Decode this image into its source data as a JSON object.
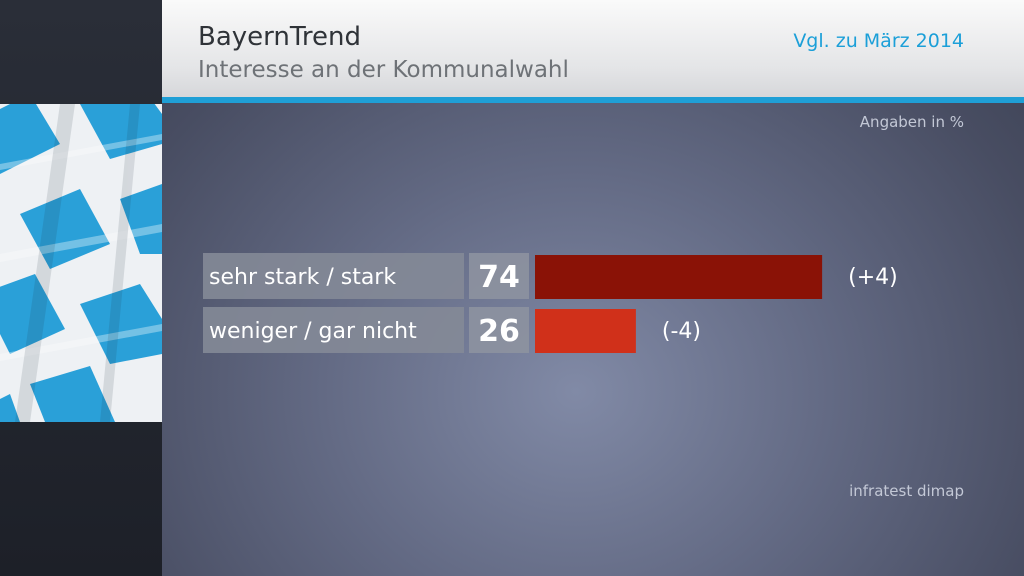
{
  "header": {
    "title": "BayernTrend",
    "subtitle": "Interesse an der Kommunalwahl",
    "comparison": "Vgl. zu März 2014"
  },
  "units_label": "Angaben in %",
  "source": "infratest dimap",
  "colors": {
    "accent": "#1f9fd6",
    "bar_first": "#8a1206",
    "bar_second": "#d0301a",
    "label_box": "#848997",
    "value_box": "#8d92a0"
  },
  "chart_data": {
    "type": "bar",
    "orientation": "horizontal",
    "title": "Interesse an der Kommunalwahl",
    "categories": [
      "sehr stark / stark",
      "weniger / gar nicht"
    ],
    "values": [
      74,
      26
    ],
    "value_labels": [
      "74",
      "26"
    ],
    "change_labels": [
      "(+4)",
      "(-4)"
    ],
    "xlim": [
      0,
      100
    ],
    "grid": false
  }
}
